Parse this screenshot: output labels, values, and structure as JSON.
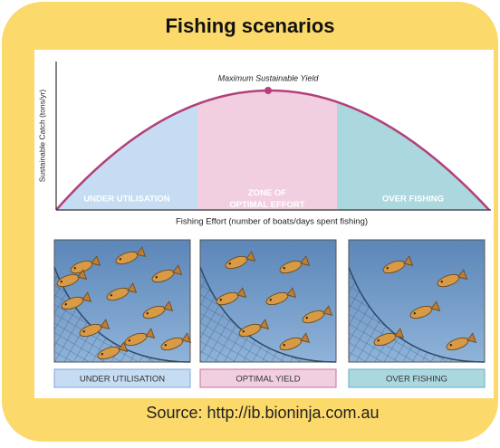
{
  "title": "Fishing scenarios",
  "graph": {
    "peak_label": "Maximum Sustainable Yield",
    "y_axis_label": "Sustainable Catch (tons/yr)",
    "x_axis_label": "Fishing Effort (number of boats/days spent fishing)",
    "zones": [
      "UNDER UTILISATION",
      "ZONE OF OPTIMAL EFFORT",
      "OVER FISHING"
    ]
  },
  "panels": [
    "UNDER UTILISATION",
    "OPTIMAL YIELD",
    "OVER FISHING"
  ],
  "source": "Source: http://ib.bioninja.com.au"
}
